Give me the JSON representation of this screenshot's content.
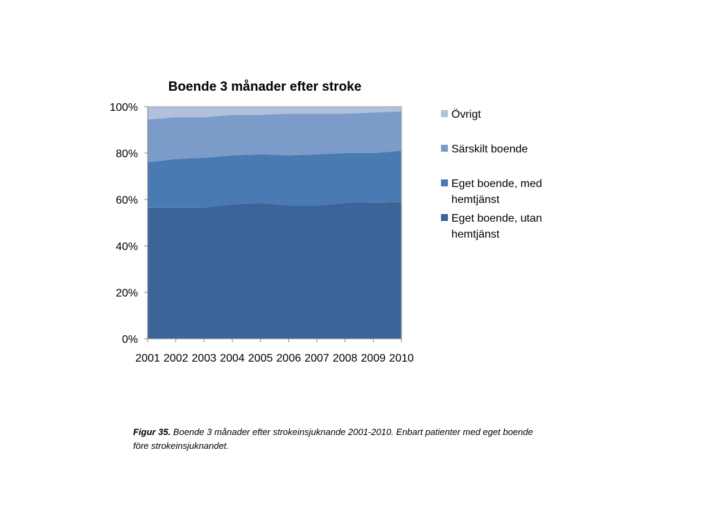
{
  "chart_data": {
    "type": "area",
    "stacked": "percent",
    "title": "Boende 3 månader efter stroke",
    "xlabel": "",
    "ylabel": "",
    "categories": [
      "2001",
      "2002",
      "2003",
      "2004",
      "2005",
      "2006",
      "2007",
      "2008",
      "2009",
      "2010"
    ],
    "ylim": [
      0,
      100
    ],
    "yticks": [
      "0%",
      "20%",
      "40%",
      "60%",
      "80%",
      "100%"
    ],
    "grid": false,
    "legend_position": "right",
    "series": [
      {
        "name": "Eget boende, utan hemtjänst",
        "color": "#3b6598",
        "values": [
          56.5,
          56.5,
          56.5,
          58,
          58.5,
          57.5,
          57.5,
          58.5,
          58.5,
          59
        ]
      },
      {
        "name": "Eget boende, med hemtjänst",
        "color": "#4a7ab2",
        "values": [
          19.5,
          21,
          21.5,
          21,
          21,
          21.5,
          22,
          21.5,
          21.5,
          22
        ]
      },
      {
        "name": "Särskilt boende",
        "color": "#7b9cc8",
        "values": [
          18.5,
          18,
          17.5,
          17.5,
          17,
          18,
          17.5,
          17,
          17.5,
          17
        ]
      },
      {
        "name": "Övrigt",
        "color": "#b1c1dd",
        "values": [
          5.5,
          4.5,
          4.5,
          3.5,
          3.5,
          3,
          3,
          3,
          2.5,
          2
        ]
      }
    ]
  },
  "legend": {
    "items": [
      {
        "label": "Övrigt",
        "color": "#b1c1dd"
      },
      {
        "label": "Särskilt boende",
        "color": "#7b9cc8"
      },
      {
        "label": "Eget boende, med hemtjänst",
        "color": "#4a7ab2"
      },
      {
        "label": "Eget boende, utan hemtjänst",
        "color": "#3b6598"
      }
    ]
  },
  "caption": {
    "figure_label": "Figur 35.",
    "text": " Boende 3 månader efter strokeinsjuknande 2001-2010. Enbart patienter med eget boende före strokeinsjuknandet."
  }
}
